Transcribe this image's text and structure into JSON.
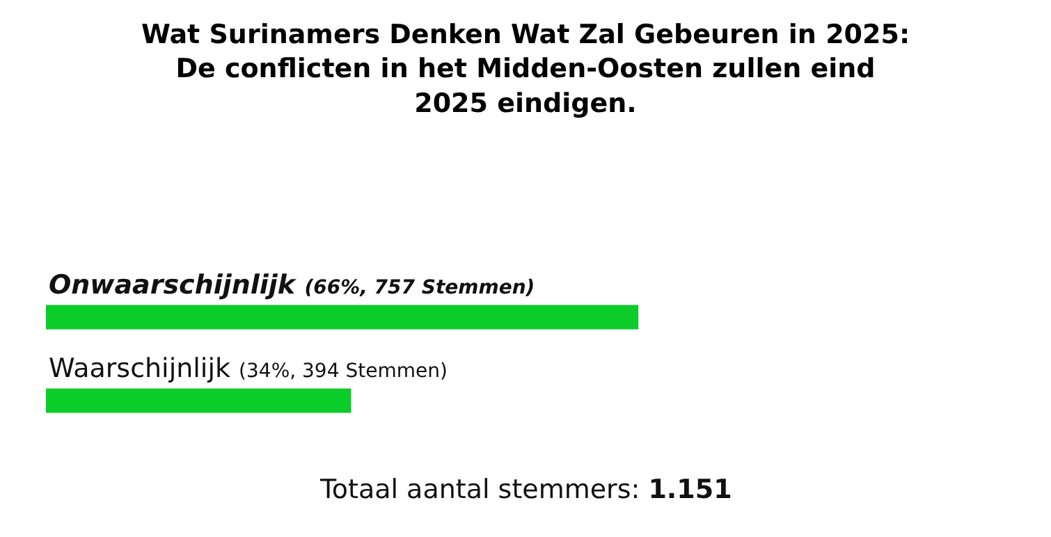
{
  "chart_data": {
    "type": "bar",
    "orientation": "horizontal",
    "title": "Wat Surinamers Denken Wat Zal Gebeuren in 2025: De conflicten in het Midden-Oosten zullen eind 2025 eindigen.",
    "categories": [
      "Onwaarschijnlijk",
      "Waarschijnlijk"
    ],
    "values": [
      66,
      34
    ],
    "value_labels": [
      "(66%, 757 Stemmen)",
      "(34%, 394 Stemmen)"
    ],
    "color": "#0ccc2a",
    "annotations": [
      "Totaal aantal stemmers: 1.151"
    ]
  }
}
